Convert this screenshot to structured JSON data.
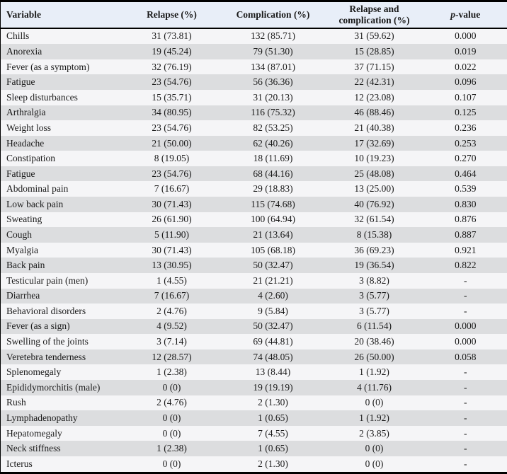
{
  "colors": {
    "header_bg": "#e8eef8",
    "row_light": "#f5f5f7",
    "row_dark": "#dcdddf",
    "border": "#000000",
    "text": "#1a1a1a"
  },
  "header": {
    "variable": "Variable",
    "relapse": "Relapse (%)",
    "complication": "Complication (%)",
    "relapse_and_complication": "Relapse and complication (%)",
    "p_value_italic": "p",
    "p_value_rest": "-value"
  },
  "rows": [
    [
      "Chills",
      "31 (73.81)",
      "132 (85.71)",
      "31 (59.62)",
      "0.000"
    ],
    [
      "Anorexia",
      "19 (45.24)",
      "79 (51.30)",
      "15 (28.85)",
      "0.019"
    ],
    [
      "Fever (as a symptom)",
      "32 (76.19)",
      "134 (87.01)",
      "37 (71.15)",
      "0.022"
    ],
    [
      "Fatigue",
      "23 (54.76)",
      "56 (36.36)",
      "22 (42.31)",
      "0.096"
    ],
    [
      "Sleep disturbances",
      "15 (35.71)",
      "31 (20.13)",
      "12 (23.08)",
      "0.107"
    ],
    [
      "Arthralgia",
      "34 (80.95)",
      "116 (75.32)",
      "46 (88.46)",
      "0.125"
    ],
    [
      "Weight loss",
      "23 (54.76)",
      "82 (53.25)",
      "21 (40.38)",
      "0.236"
    ],
    [
      "Headache",
      "21 (50.00)",
      "62 (40.26)",
      "17 (32.69)",
      "0.253"
    ],
    [
      "Constipation",
      "8 (19.05)",
      "18 (11.69)",
      "10 (19.23)",
      "0.270"
    ],
    [
      "Fatigue",
      "23 (54.76)",
      "68 (44.16)",
      "25 (48.08)",
      "0.464"
    ],
    [
      "Abdominal pain",
      "7 (16.67)",
      "29 (18.83)",
      "13 (25.00)",
      "0.539"
    ],
    [
      "Low back pain",
      "30 (71.43)",
      "115 (74.68)",
      "40 (76.92)",
      "0.830"
    ],
    [
      "Sweating",
      "26 (61.90)",
      "100 (64.94)",
      "32 (61.54)",
      "0.876"
    ],
    [
      "Cough",
      "5 (11.90)",
      "21 (13.64)",
      "8 (15.38)",
      "0.887"
    ],
    [
      "Myalgia",
      "30 (71.43)",
      "105 (68.18)",
      "36 (69.23)",
      "0.921"
    ],
    [
      "Back pain",
      "13 (30.95)",
      "50 (32.47)",
      "19 (36.54)",
      "0.822"
    ],
    [
      "Testicular pain (men)",
      "1 (4.55)",
      "21 (21.21)",
      "3 (8.82)",
      "-"
    ],
    [
      "Diarrhea",
      "7 (16.67)",
      "4 (2.60)",
      "3 (5.77)",
      "-"
    ],
    [
      "Behavioral disorders",
      "2 (4.76)",
      "9 (5.84)",
      "3 (5.77)",
      "-"
    ],
    [
      "Fever (as a sign)",
      "4 (9.52)",
      "50 (32.47)",
      "6 (11.54)",
      "0.000"
    ],
    [
      "Swelling of the joints",
      "3 (7.14)",
      "69 (44.81)",
      "20 (38.46)",
      "0.000"
    ],
    [
      "Veretebra tenderness",
      "12 (28.57)",
      "74 (48.05)",
      "26 (50.00)",
      "0.058"
    ],
    [
      "Splenomegaly",
      "1 (2.38)",
      "13 (8.44)",
      "1 (1.92)",
      "-"
    ],
    [
      "Epididymorchitis (male)",
      "0 (0)",
      "19 (19.19)",
      "4 (11.76)",
      "-"
    ],
    [
      "Rush",
      "2 (4.76)",
      "2 (1.30)",
      "0 (0)",
      "-"
    ],
    [
      "Lymphadenopathy",
      "0 (0)",
      "1 (0.65)",
      "1 (1.92)",
      "-"
    ],
    [
      "Hepatomegaly",
      "0 (0)",
      "7 (4.55)",
      "2 (3.85)",
      "-"
    ],
    [
      "Neck stiffness",
      "1 (2.38)",
      "1 (0.65)",
      "0 (0)",
      "-"
    ],
    [
      "Icterus",
      "0 (0)",
      "2 (1.30)",
      "0 (0)",
      "-"
    ]
  ]
}
